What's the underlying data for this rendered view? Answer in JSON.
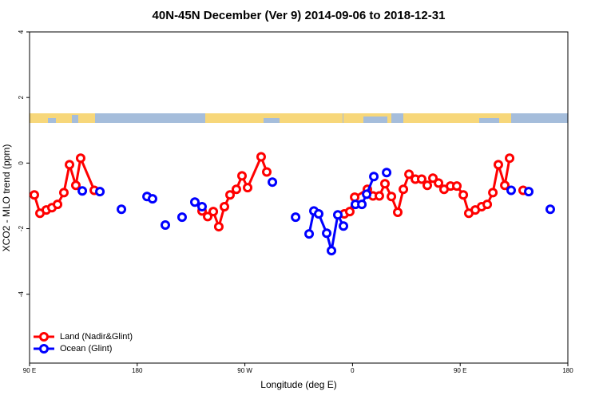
{
  "chart_data": {
    "type": "line",
    "title": "40N-45N December (Ver 9)   2014-09-06 to 2018-12-31",
    "xlabel": "Longitude (deg E)",
    "ylabel": "XCO2 - MLO trend (ppm)",
    "xlim": [
      90,
      540
    ],
    "ylim": [
      -6.1,
      4.0
    ],
    "xticks": [
      {
        "value": 90,
        "label": "90 E"
      },
      {
        "value": 180,
        "label": "180"
      },
      {
        "value": 270,
        "label": "90 W"
      },
      {
        "value": 360,
        "label": "0"
      },
      {
        "value": 450,
        "label": "90 E"
      },
      {
        "value": 540,
        "label": "180"
      }
    ],
    "yticks": [
      4,
      2,
      0,
      -2,
      -4
    ],
    "legend": "bottom-left",
    "series": [
      {
        "name": "Land (Nadir&Glint)",
        "color": "#ff0000",
        "x": [
          94.0,
          98.7,
          104.0,
          108.7,
          113.4,
          118.7,
          123.4,
          128.7,
          132.7,
          144.1,
          null,
          234.2,
          238.9,
          243.6,
          248.2,
          252.9,
          257.6,
          262.9,
          267.6,
          272.3,
          283.6,
          288.3,
          null,
          353.1,
          357.7,
          361.8,
          372.4,
          377.1,
          382.4,
          387.1,
          392.5,
          397.8,
          402.5,
          407.2,
          412.5,
          417.8,
          422.5,
          427.2,
          431.9,
          436.5,
          441.9,
          447.2,
          452.6,
          457.2,
          462.6,
          467.9,
          472.6,
          477.3,
          481.9,
          487.3,
          491.3,
          null,
          502.6
        ],
        "values": [
          -0.97,
          -1.53,
          -1.43,
          -1.36,
          -1.26,
          -0.9,
          -0.05,
          -0.68,
          0.15,
          -0.83,
          null,
          -1.46,
          -1.63,
          -1.48,
          -1.94,
          -1.33,
          -0.97,
          -0.8,
          -0.39,
          -0.75,
          0.19,
          -0.27,
          null,
          -1.55,
          -1.48,
          -1.04,
          -0.8,
          -1.0,
          -1.0,
          -0.63,
          -1.02,
          -1.5,
          -0.8,
          -0.34,
          -0.49,
          -0.49,
          -0.68,
          -0.46,
          -0.61,
          -0.8,
          -0.7,
          -0.7,
          -0.97,
          -1.53,
          -1.43,
          -1.33,
          -1.26,
          -0.9,
          -0.05,
          -0.68,
          0.15,
          null,
          -0.83
        ]
      },
      {
        "name": "Ocean (Glint)",
        "color": "#0000ff",
        "x": [
          134.1,
          null,
          148.8,
          null,
          166.8,
          null,
          188.2,
          192.8,
          null,
          203.5,
          null,
          217.5,
          null,
          228.2,
          234.2,
          null,
          293.0,
          null,
          312.4,
          null,
          323.7,
          327.7,
          331.7,
          338.4,
          342.4,
          347.7,
          352.4,
          null,
          362.4,
          367.8,
          371.8,
          377.8,
          null,
          388.5,
          null,
          492.6,
          null,
          507.3,
          null,
          525.3
        ],
        "values": [
          -0.85,
          null,
          -0.87,
          null,
          -1.41,
          null,
          -1.02,
          -1.09,
          null,
          -1.89,
          null,
          -1.65,
          null,
          -1.19,
          -1.33,
          null,
          -0.58,
          null,
          -1.65,
          null,
          -2.16,
          -1.46,
          -1.55,
          -2.14,
          -2.67,
          -1.58,
          -1.92,
          null,
          -1.26,
          -1.26,
          -0.95,
          -0.41,
          null,
          -0.29,
          null,
          -0.83,
          null,
          -0.87,
          null,
          -1.41
        ]
      }
    ]
  }
}
